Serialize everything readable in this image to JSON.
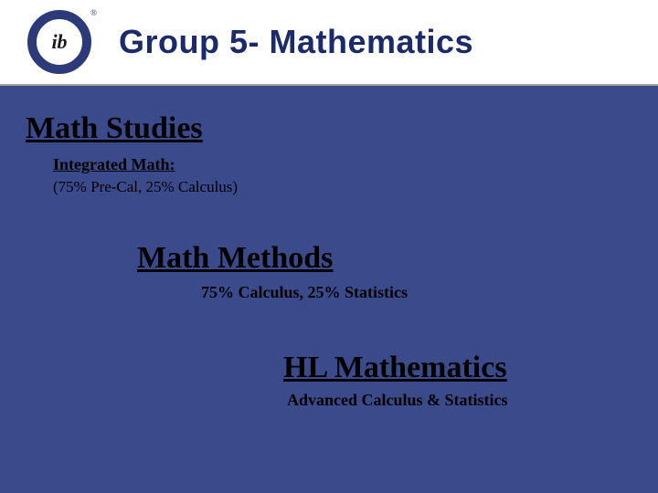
{
  "colors": {
    "header_bg": "#ffffff",
    "body_bg": "#3a4a8a",
    "title_color": "#1a2a6a",
    "text_color": "#000000",
    "logo_ring": "#2c3a7a"
  },
  "header": {
    "title": "Group 5- Mathematics",
    "logo_text": "ib",
    "logo_reg": "®"
  },
  "blocks": {
    "studies": {
      "heading": "Math Studies",
      "sub1": "Integrated Math:",
      "sub2": "(75% Pre-Cal, 25% Calculus)"
    },
    "methods": {
      "heading": "Math Methods",
      "sub1": "75% Calculus, 25% Statistics"
    },
    "hl": {
      "heading": "HL Mathematics",
      "sub1": "Advanced Calculus & Statistics"
    }
  },
  "typography": {
    "title_fontsize": 36,
    "heading_fontsize": 34,
    "sub_fontsize": 18
  }
}
